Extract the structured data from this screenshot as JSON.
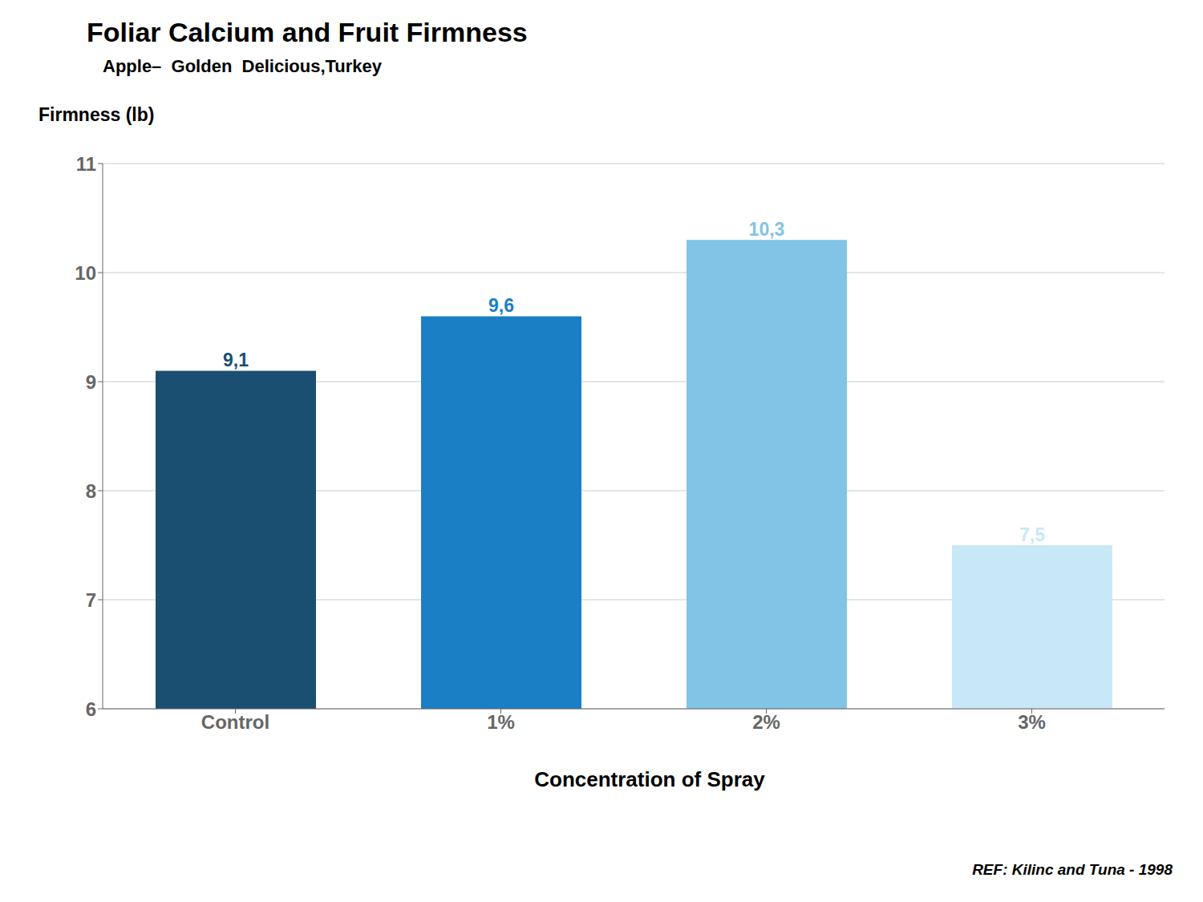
{
  "chart_data": {
    "type": "bar",
    "title": "Foliar Calcium and Fruit Firmness",
    "subtitle": "Apple–  Golden  Delicious,Turkey",
    "xlabel": "Concentration of Spray",
    "ylabel": "Firmness (lb)",
    "annotations": [
      "REF: Kilinc and Tuna - 1998"
    ],
    "categories": [
      "Control",
      "1%",
      "2%",
      "3%"
    ],
    "values": [
      9.1,
      9.6,
      10.3,
      7.5
    ],
    "value_labels": [
      "9,1",
      "9,6",
      "10,3",
      "7,5"
    ],
    "data_labels": true,
    "colors": [
      "#1a4f72",
      "#1a7fc4",
      "#82c4e6",
      "#c8e8f8"
    ],
    "ylim": [
      6,
      11
    ],
    "yticks": [
      6,
      7,
      8,
      9,
      10,
      11
    ],
    "grid": true
  }
}
